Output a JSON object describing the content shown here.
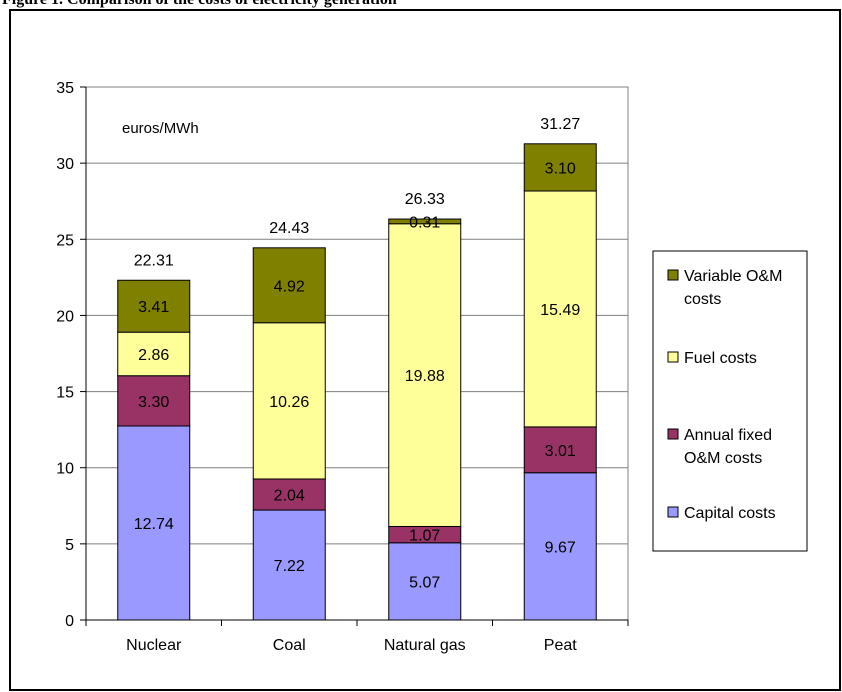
{
  "page_heading": "Figure 1. Comparison of the costs of electricity generation",
  "chart_data": {
    "type": "bar",
    "stacked": true,
    "categories": [
      "Nuclear",
      "Coal",
      "Natural gas",
      "Peat"
    ],
    "unit_label": "euros/MWh",
    "ylim": [
      0,
      35
    ],
    "yticks": [
      0,
      5,
      10,
      15,
      20,
      25,
      30,
      35
    ],
    "grid": true,
    "legend_position": "right",
    "series": [
      {
        "name": "Capital costs",
        "color": "#9999ff",
        "values": [
          12.74,
          7.22,
          5.07,
          9.67
        ],
        "labels": [
          "12.74",
          "7.22",
          "5.07",
          "9.67"
        ]
      },
      {
        "name": "Annual fixed O&M costs",
        "color": "#993366",
        "values": [
          3.3,
          2.04,
          1.07,
          3.01
        ],
        "labels": [
          "3.30",
          "2.04",
          "1.07",
          "3.01"
        ]
      },
      {
        "name": "Fuel costs",
        "color": "#ffff99",
        "values": [
          2.86,
          10.26,
          19.88,
          15.49
        ],
        "labels": [
          "2.86",
          "10.26",
          "19.88",
          "15.49"
        ]
      },
      {
        "name": "Variable O&M costs",
        "color": "#808000",
        "values": [
          3.41,
          4.92,
          0.31,
          3.1
        ],
        "labels": [
          "3.41",
          "4.92",
          "0.31",
          "3.10"
        ]
      }
    ],
    "totals": [
      "22.31",
      "24.43",
      "26.33",
      "31.27"
    ],
    "legend": [
      {
        "lines": [
          "Variable O&M",
          "costs"
        ],
        "color": "#808000"
      },
      {
        "lines": [
          "Fuel costs"
        ],
        "color": "#ffff99"
      },
      {
        "lines": [
          "Annual fixed",
          "O&M costs"
        ],
        "color": "#993366"
      },
      {
        "lines": [
          "Capital costs"
        ],
        "color": "#9999ff"
      }
    ]
  }
}
